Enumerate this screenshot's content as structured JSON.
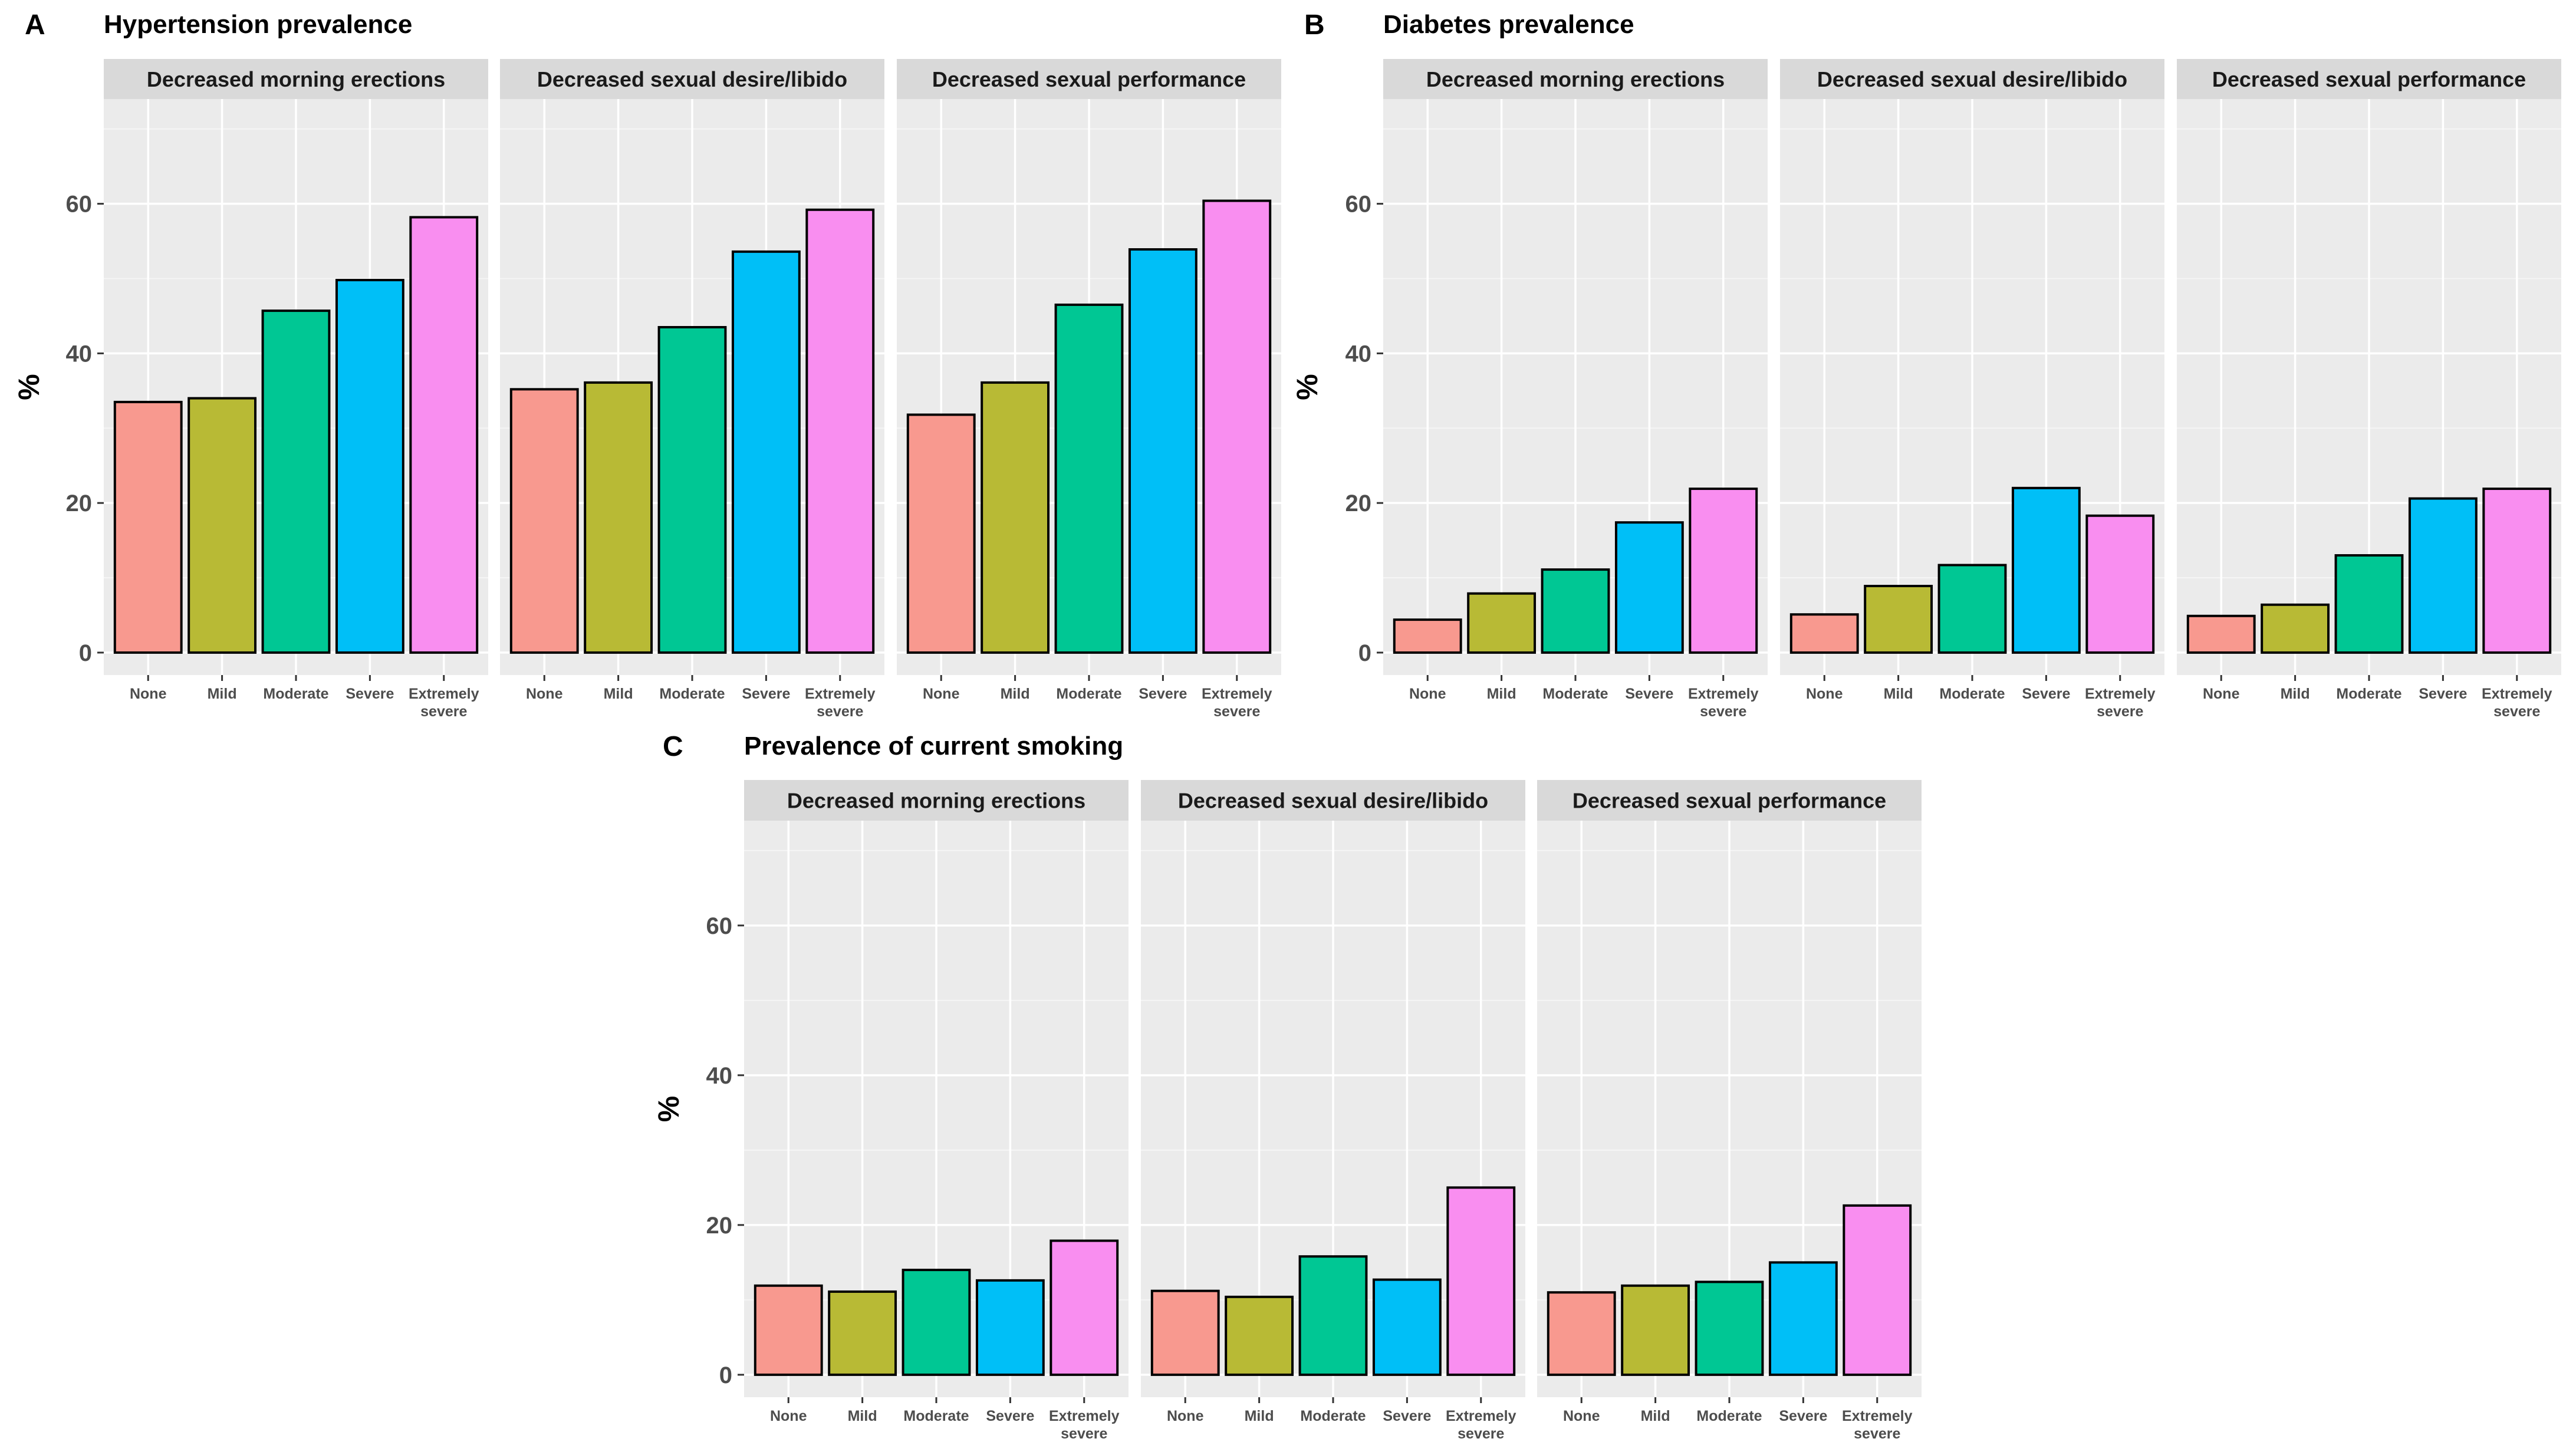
{
  "chart_data": [
    {
      "type": "bar",
      "panel_label": "A",
      "title": "Hypertension prevalence",
      "ylabel": "%",
      "xlabel": "",
      "ylim": [
        -3,
        74
      ],
      "yticks": [
        0,
        20,
        40,
        60
      ],
      "grid": true,
      "categories": [
        "None",
        "Mild",
        "Moderate",
        "Severe",
        "Extremely severe"
      ],
      "facets": [
        {
          "name": "Decreased morning erections",
          "values": [
            33.5,
            34.0,
            45.7,
            49.8,
            58.2
          ]
        },
        {
          "name": "Decreased sexual desire/libido",
          "values": [
            35.2,
            36.1,
            43.5,
            53.6,
            59.2
          ]
        },
        {
          "name": "Decreased sexual performance",
          "values": [
            31.8,
            36.1,
            46.5,
            53.9,
            60.4
          ]
        }
      ]
    },
    {
      "type": "bar",
      "panel_label": "B",
      "title": "Diabetes prevalence",
      "ylabel": "%",
      "xlabel": "",
      "ylim": [
        -3,
        74
      ],
      "yticks": [
        0,
        20,
        40,
        60
      ],
      "grid": true,
      "categories": [
        "None",
        "Mild",
        "Moderate",
        "Severe",
        "Extremely severe"
      ],
      "facets": [
        {
          "name": "Decreased morning erections",
          "values": [
            4.4,
            7.9,
            11.1,
            17.4,
            21.9
          ]
        },
        {
          "name": "Decreased sexual desire/libido",
          "values": [
            5.1,
            8.9,
            11.7,
            22.0,
            18.3
          ]
        },
        {
          "name": "Decreased sexual performance",
          "values": [
            4.9,
            6.4,
            13.0,
            20.6,
            21.9
          ]
        }
      ]
    },
    {
      "type": "bar",
      "panel_label": "C",
      "title": "Prevalence of current smoking",
      "ylabel": "%",
      "xlabel": "",
      "ylim": [
        -3,
        74
      ],
      "yticks": [
        0,
        20,
        40,
        60
      ],
      "grid": true,
      "categories": [
        "None",
        "Mild",
        "Moderate",
        "Severe",
        "Extremely severe"
      ],
      "facets": [
        {
          "name": "Decreased morning erections",
          "values": [
            11.9,
            11.1,
            14.0,
            12.6,
            17.9
          ]
        },
        {
          "name": "Decreased sexual desire/libido",
          "values": [
            11.2,
            10.4,
            15.8,
            12.7,
            25.0
          ]
        },
        {
          "name": "Decreased sexual performance",
          "values": [
            11.0,
            11.9,
            12.4,
            15.0,
            22.6
          ]
        }
      ]
    }
  ],
  "colors": {
    "bars": [
      "#f8998f",
      "#b8ba35",
      "#00c794",
      "#00bff7",
      "#f98ef0"
    ],
    "panel_background": "#ebebeb",
    "strip_background": "#d9d9d9",
    "grid_major": "#ffffff",
    "bar_outline": "#000000"
  }
}
